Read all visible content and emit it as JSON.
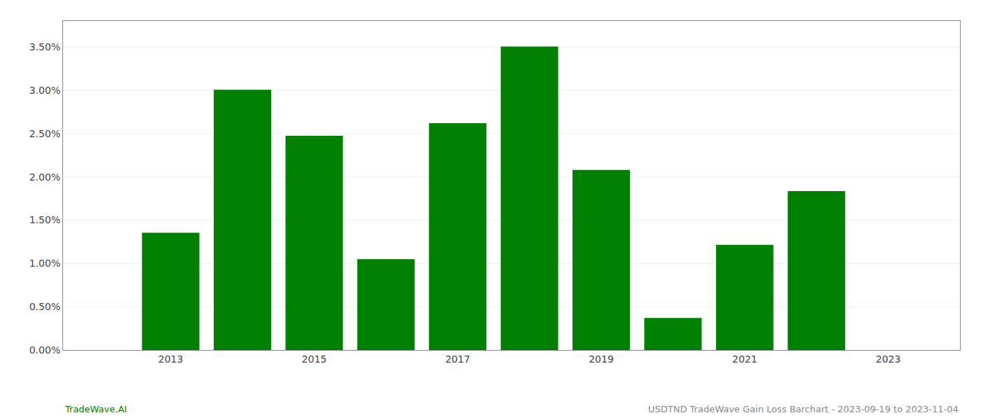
{
  "chart_data": {
    "type": "bar",
    "x": [
      2013,
      2014,
      2015,
      2016,
      2017,
      2018,
      2019,
      2020,
      2021,
      2022
    ],
    "values": [
      0.01355,
      0.03005,
      0.02475,
      0.0105,
      0.0262,
      0.03505,
      0.0208,
      0.0037,
      0.01215,
      0.01835
    ],
    "color": "#008000",
    "xlim": [
      2011.5,
      2024.0
    ],
    "xticks": [
      2013,
      2015,
      2017,
      2019,
      2021,
      2023
    ],
    "ylim": [
      0,
      0.038
    ],
    "yticks": [
      {
        "value": 0.0,
        "label": "0.00%"
      },
      {
        "value": 0.005,
        "label": "0.50%"
      },
      {
        "value": 0.01,
        "label": "1.00%"
      },
      {
        "value": 0.015,
        "label": "1.50%"
      },
      {
        "value": 0.02,
        "label": "2.00%"
      },
      {
        "value": 0.025,
        "label": "2.50%"
      },
      {
        "value": 0.03,
        "label": "3.00%"
      },
      {
        "value": 0.035,
        "label": "3.50%"
      }
    ],
    "grid": "y",
    "annotations": [
      {
        "text": "TradeWave.AI",
        "color": "#008000"
      },
      {
        "text": "USDTND TradeWave Gain Loss Barchart - 2023-09-19 to 2023-11-04",
        "color": "#888888"
      }
    ]
  }
}
